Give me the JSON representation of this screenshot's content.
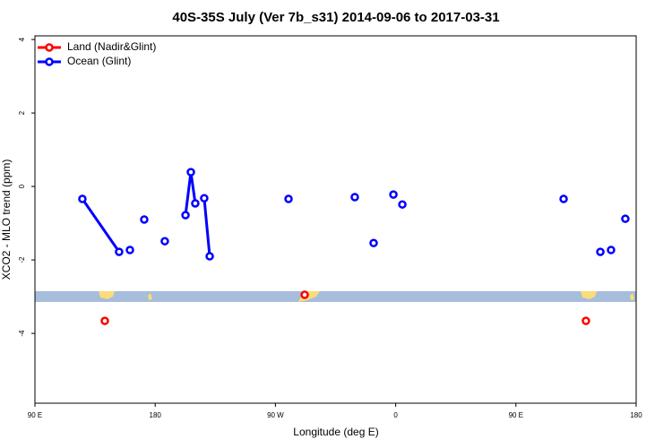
{
  "chart_data": {
    "type": "scatter",
    "title": "40S-35S July (Ver 7b_s31)   2014-09-06 to 2017-03-31",
    "x_label": "Longitude (deg E)",
    "y_label": "XCO2 - MLO trend (ppm)",
    "xlim": [
      90,
      540
    ],
    "ylim": [
      -5.9,
      4.1
    ],
    "xticks": [
      {
        "value": 90,
        "label": "90 E"
      },
      180,
      {
        "value": 270,
        "label": "90 W"
      },
      {
        "value": 360,
        "label": "0"
      },
      {
        "value": 450,
        "label": "90 E"
      },
      {
        "value": 540,
        "label": "180"
      }
    ],
    "yticks": [
      4,
      2,
      0,
      -2,
      -4
    ],
    "legend": "top-left",
    "series": [
      {
        "name": "Land (Nadir&Glint)",
        "color": "#ff0000",
        "lines": false,
        "x": [
          142.3,
          291.9,
          502.4
        ],
        "values": [
          -3.66,
          -2.95,
          -3.66
        ]
      },
      {
        "name": "Ocean (Glint)",
        "color": "#0000ff",
        "lines": true,
        "x": [
          125.5,
          153.0,
          null,
          161.1,
          null,
          171.8,
          null,
          187.2,
          null,
          202.7,
          206.7,
          210.0,
          null,
          216.7,
          220.8,
          null,
          279.8,
          null,
          329.4,
          null,
          343.5,
          null,
          358.3,
          null,
          365.0,
          null,
          485.7,
          null,
          513.2,
          null,
          521.2,
          null,
          531.9
        ],
        "values": [
          -0.34,
          -1.78,
          null,
          -1.73,
          null,
          -0.9,
          null,
          -1.49,
          null,
          -0.78,
          0.39,
          -0.46,
          null,
          -0.32,
          -1.9,
          null,
          -0.34,
          null,
          -0.29,
          null,
          -1.54,
          null,
          -0.22,
          null,
          -0.49,
          null,
          -0.34,
          null,
          -1.78,
          null,
          -1.73,
          null,
          -0.88
        ]
      }
    ]
  }
}
